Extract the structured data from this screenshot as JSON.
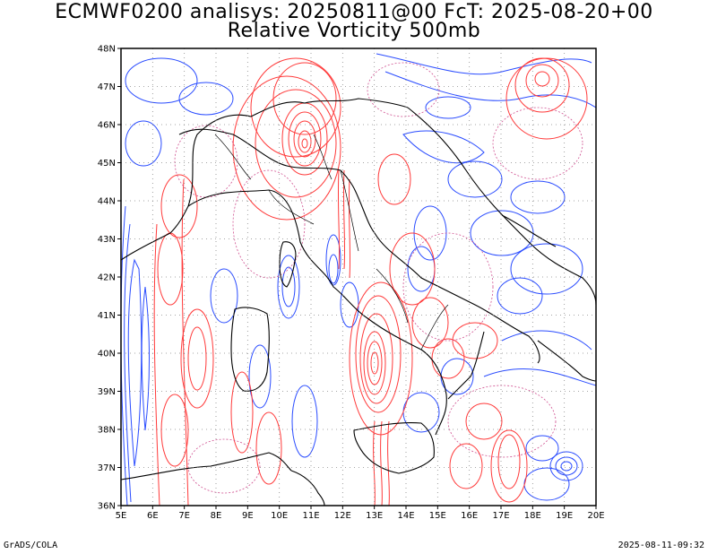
{
  "header": {
    "title_line1": "ECMWF0200 analisys: 20250811@00 FcT: 2025-08-20+00",
    "title_line2": "Relative Vorticity 500mb"
  },
  "footer": {
    "left": "GrADS/COLA",
    "right": "2025-08-11-09:32"
  },
  "map": {
    "lon_range": [
      5,
      20
    ],
    "lat_range": [
      36,
      48
    ],
    "lon_labels": [
      "5E",
      "6E",
      "7E",
      "8E",
      "9E",
      "10E",
      "11E",
      "12E",
      "13E",
      "14E",
      "15E",
      "16E",
      "17E",
      "18E",
      "19E",
      "20E"
    ],
    "lat_labels": [
      "36N",
      "37N",
      "38N",
      "39N",
      "40N",
      "41N",
      "42N",
      "43N",
      "44N",
      "45N",
      "46N",
      "47N",
      "48N"
    ],
    "grid": "dotted",
    "colors": {
      "positive_contour": "#ff3030",
      "negative_contour": "#2040ff",
      "zero_contour": "#d04080",
      "coastline": "#000000",
      "grid": "#888888"
    }
  }
}
